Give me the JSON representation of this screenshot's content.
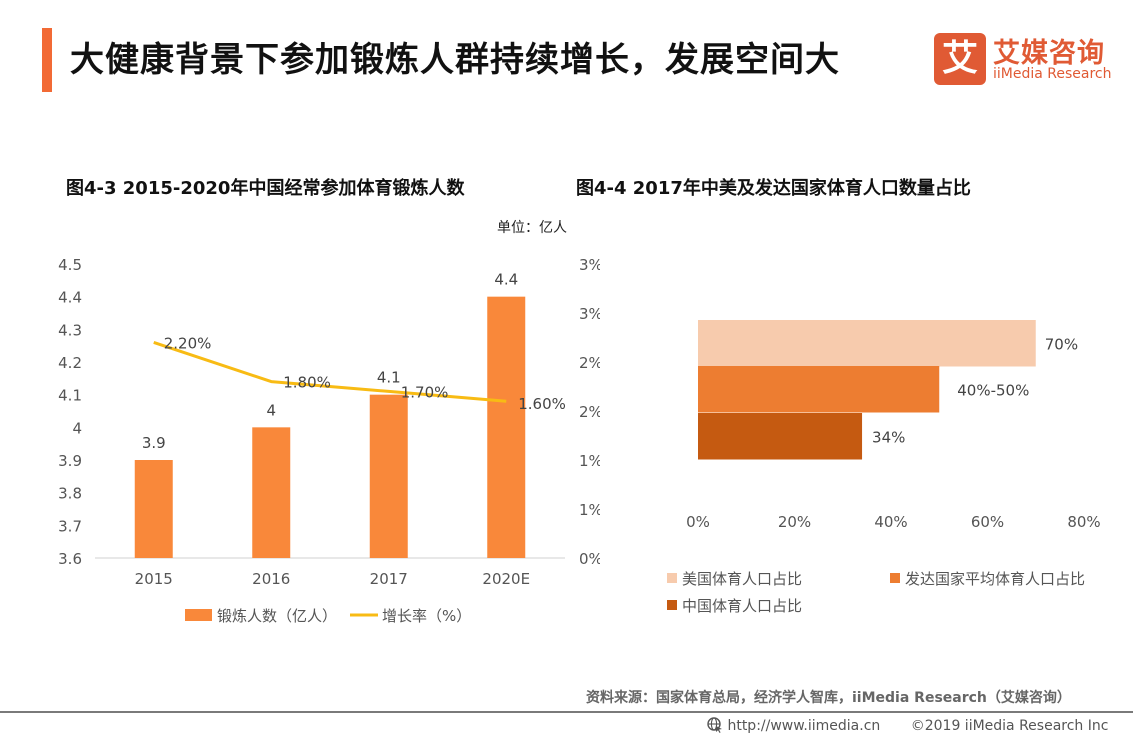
{
  "header": {
    "title": "大健康背景下参加锻炼人群持续增长，发展空间大",
    "accent_color": "#f26a35"
  },
  "logo": {
    "glyph": "艾",
    "cn": "艾媒咨询",
    "en": "iiMedia Research",
    "color": "#e05a34"
  },
  "chart_data": [
    {
      "type": "bar",
      "title": "图4-3 2015-2020年中国经常参加体育锻炼人数",
      "unit_label": "单位：亿人",
      "categories": [
        "2015",
        "2016",
        "2017",
        "2020E"
      ],
      "series": [
        {
          "name": "锻炼人数（亿人）",
          "kind": "bar",
          "axis": "left",
          "values": [
            3.9,
            4,
            4.1,
            4.4
          ],
          "labels": [
            "3.9",
            "4",
            "4.1",
            "4.4"
          ],
          "color": "#f9883a"
        },
        {
          "name": "增长率（%）",
          "kind": "line",
          "axis": "right",
          "values": [
            2.2,
            1.8,
            1.7,
            1.6
          ],
          "labels": [
            "2.20%",
            "1.80%",
            "1.70%",
            "1.60%"
          ],
          "color": "#f8bb14"
        }
      ],
      "y_left": {
        "range": [
          3.6,
          4.5
        ],
        "ticks": [
          3.6,
          3.7,
          3.8,
          3.9,
          4.0,
          4.1,
          4.2,
          4.3,
          4.4,
          4.5
        ],
        "tick_labels": [
          "3.6",
          "3.7",
          "3.8",
          "3.9",
          "4",
          "4.1",
          "4.2",
          "4.3",
          "4.4",
          "4.5"
        ]
      },
      "y_right": {
        "range": [
          0,
          3
        ],
        "ticks": [
          0,
          0.5,
          1,
          1.5,
          2,
          2.5,
          3
        ],
        "tick_labels": [
          "0%",
          "1%",
          "1%",
          "2%",
          "2%",
          "3%",
          "3%"
        ]
      },
      "legend_position": "bottom",
      "grid": false
    },
    {
      "type": "bar",
      "orientation": "horizontal",
      "title": "图4-4 2017年中美及发达国家体育人口数量占比",
      "series": [
        {
          "name": "美国体育人口占比",
          "value": 70,
          "label": "70%",
          "color": "#f7cbad"
        },
        {
          "name": "发达国家平均体育人口占比",
          "value": 50,
          "label": "40%-50%",
          "color": "#ed7d31"
        },
        {
          "name": "中国体育人口占比",
          "value": 34,
          "label": "34%",
          "color": "#c55a11"
        }
      ],
      "x_axis": {
        "range": [
          0,
          80
        ],
        "ticks": [
          0,
          20,
          40,
          60,
          80
        ],
        "tick_labels": [
          "0%",
          "20%",
          "40%",
          "60%",
          "80%"
        ]
      },
      "legend_position": "bottom",
      "grid": false
    }
  ],
  "footer": {
    "source": "资料来源：国家体育总局，经济学人智库，iiMedia Research（艾媒咨询）",
    "url": "http://www.iimedia.cn",
    "copyright": "©2019  iiMedia Research  Inc"
  }
}
